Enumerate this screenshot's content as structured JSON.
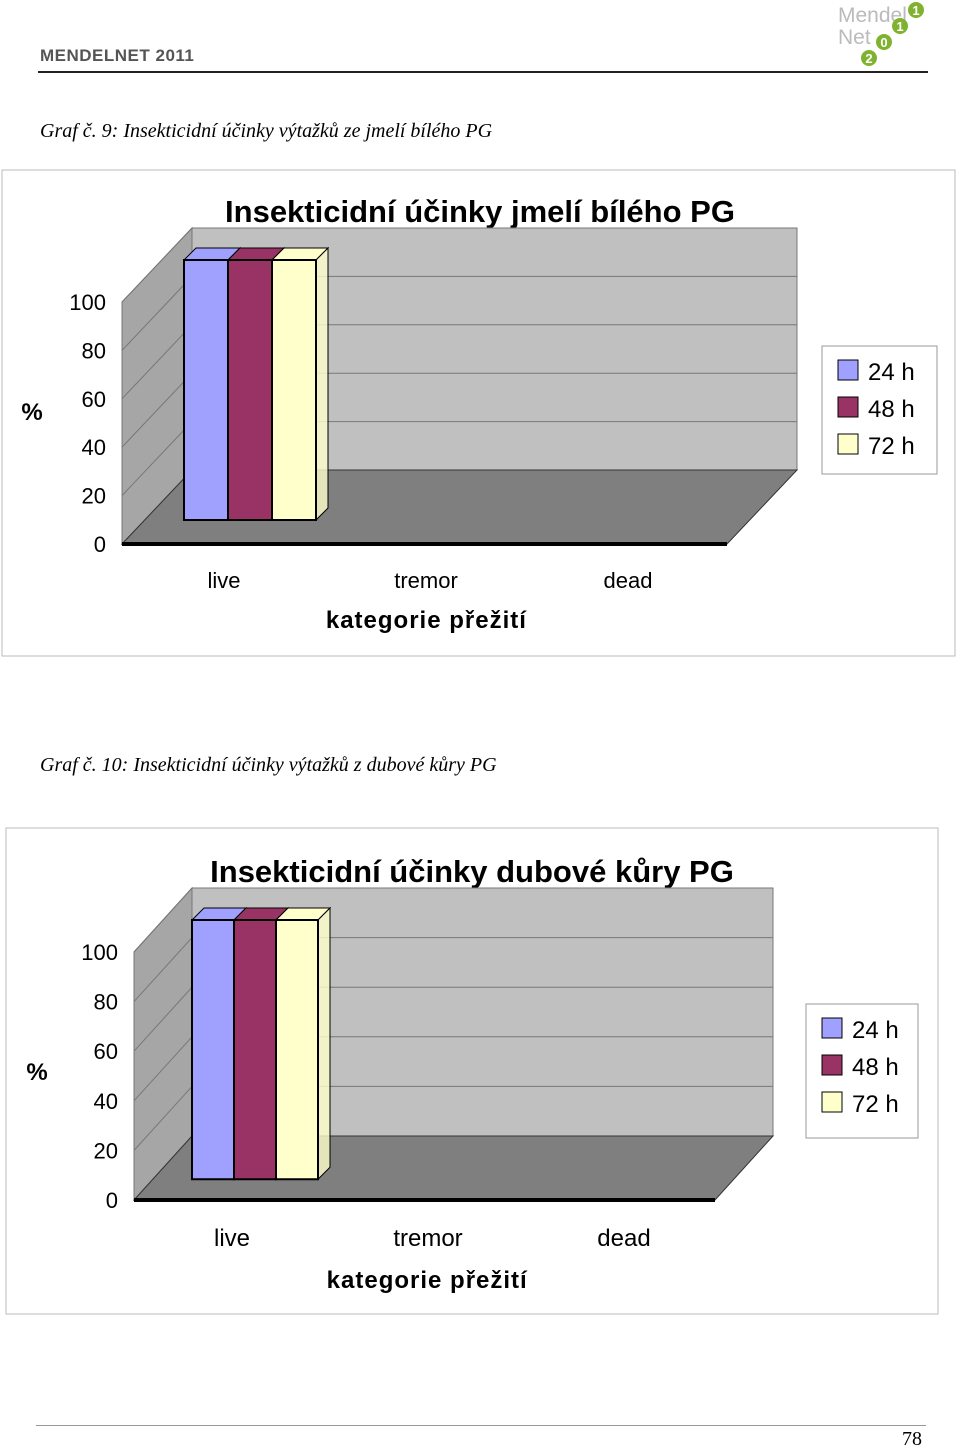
{
  "header": {
    "journal": "MENDELNET 2011",
    "logo_text": [
      "Mendel",
      "Net",
      "2",
      "0",
      "1",
      "1"
    ]
  },
  "colors": {
    "series1": "#a0a0ff",
    "series2": "#993366",
    "series3": "#ffffcc",
    "wall": "#c0c0c0",
    "floor": "#7f7f7f",
    "logo_green": "#7fb32f"
  },
  "captions": {
    "graph9": "Graf č. 9: Insekticidní účinky výtažků ze jmelí bílého PG",
    "graph10": "Graf č. 10: Insekticidní účinky výtažků z dubové kůry PG"
  },
  "chart_data": [
    {
      "type": "bar",
      "title": "Insekticidní účinky jmelí bílého PG",
      "categories": [
        "live",
        "tremor",
        "dead"
      ],
      "series": [
        {
          "name": "24 h",
          "values": [
            100,
            0,
            0
          ]
        },
        {
          "name": "48 h",
          "values": [
            100,
            0,
            0
          ]
        },
        {
          "name": "72 h",
          "values": [
            100,
            0,
            0
          ]
        }
      ],
      "yticks": [
        "0",
        "20",
        "40",
        "60",
        "80",
        "100"
      ],
      "xlabel": "kategorie přežití",
      "ylabel": "%",
      "ylim": [
        0,
        100
      ],
      "legend": "right"
    },
    {
      "type": "bar",
      "title": "Insekticidní účinky dubové kůry PG",
      "categories": [
        "live",
        "tremor",
        "dead"
      ],
      "series": [
        {
          "name": "24 h",
          "values": [
            100,
            0,
            0
          ]
        },
        {
          "name": "48 h",
          "values": [
            100,
            0,
            0
          ]
        },
        {
          "name": "72 h",
          "values": [
            100,
            0,
            0
          ]
        }
      ],
      "yticks": [
        "0",
        "20",
        "40",
        "60",
        "80",
        "100"
      ],
      "xlabel": "kategorie přežití",
      "ylabel": "%",
      "ylim": [
        0,
        100
      ],
      "legend": "right"
    }
  ],
  "footer": {
    "page_number": "78"
  }
}
